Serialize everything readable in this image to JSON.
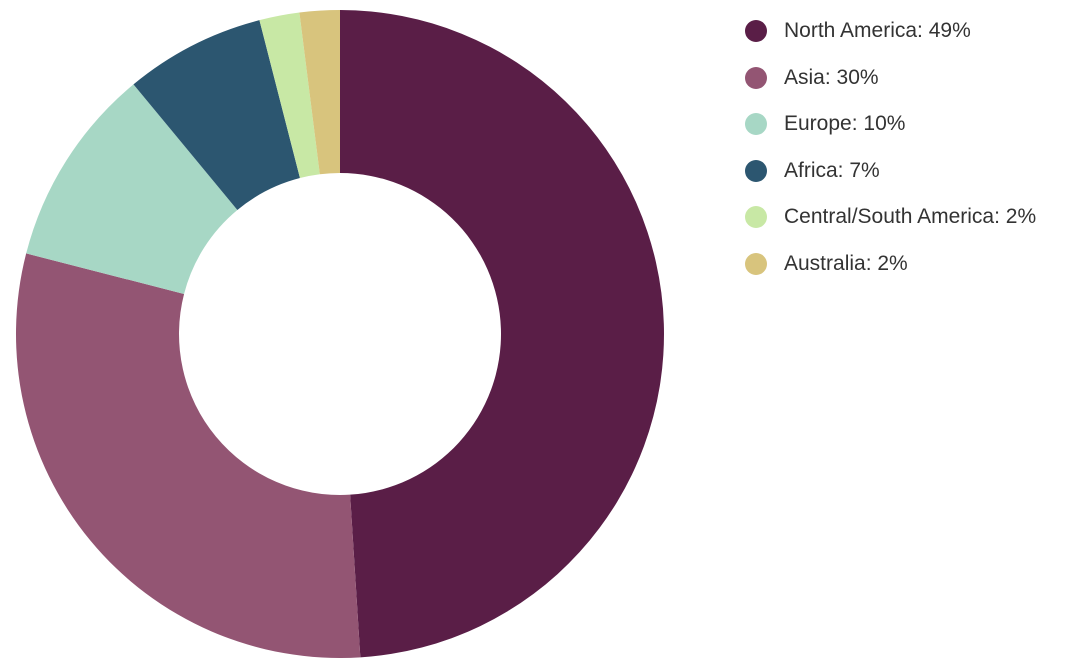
{
  "chart_data": {
    "type": "pie",
    "variant": "donut",
    "title": "",
    "categories": [
      "North America",
      "Asia",
      "Europe",
      "Africa",
      "Central/South America",
      "Australia"
    ],
    "values": [
      49,
      30,
      10,
      7,
      2,
      2
    ],
    "unit": "%",
    "colors": [
      "#5a1e47",
      "#935573",
      "#a7d7c5",
      "#2c5670",
      "#c8e8a5",
      "#d8c47d"
    ],
    "labels": [
      "North America: 49%",
      "Asia: 30%",
      "Europe: 10%",
      "Africa: 7%",
      "Central/South America: 2%",
      "Australia: 2%"
    ],
    "legend": "top-right",
    "start": "top",
    "direction": "clockwise"
  }
}
